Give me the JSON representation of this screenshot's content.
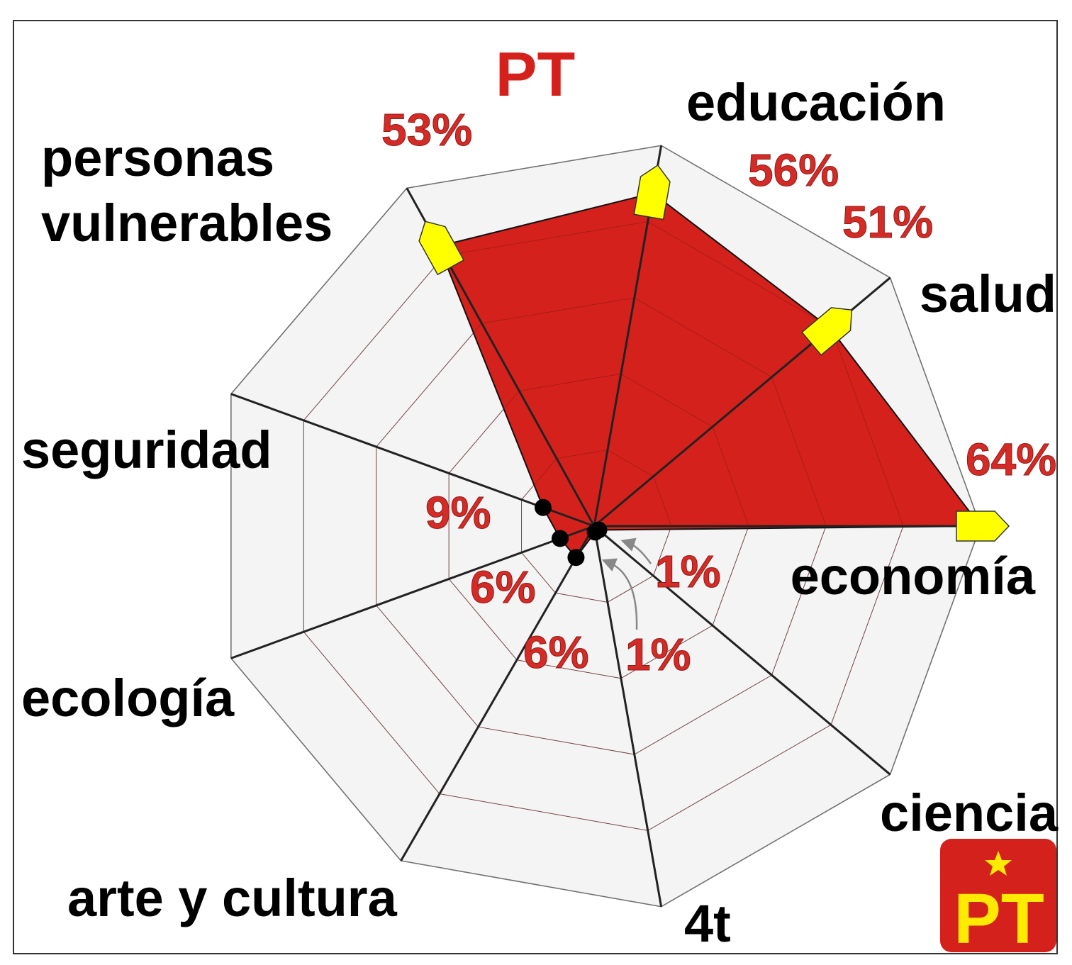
{
  "colors": {
    "fill": "#d5211c",
    "stroke": "#222222",
    "pct_text": "#d52b26",
    "marker": "#ffff00",
    "grid_face": "#f4f4f4",
    "logo_bg": "#d5211c",
    "logo_text": "#ffea00"
  },
  "chart_data": {
    "type": "radar",
    "title": "PT",
    "scale_max": 64,
    "rings": 5,
    "axes": [
      {
        "label": "economía",
        "value": 64,
        "value_label": "64%"
      },
      {
        "label": "salud",
        "value": 51,
        "value_label": "51%"
      },
      {
        "label": "educación",
        "value": 56,
        "value_label": "56%"
      },
      {
        "label": "personas vulnerables",
        "label_lines": [
          "personas",
          "vulnerables"
        ],
        "value": 53,
        "value_label": "53%"
      },
      {
        "label": "seguridad",
        "value": 9,
        "value_label": "9%"
      },
      {
        "label": "ecología",
        "value": 6,
        "value_label": "6%"
      },
      {
        "label": "arte y cultura",
        "value": 6,
        "value_label": "6%"
      },
      {
        "label": "4t",
        "value": 1,
        "value_label": "1%"
      },
      {
        "label": "ciencia",
        "value": 1,
        "value_label": "1%"
      }
    ]
  },
  "logo": {
    "text": "PT",
    "icon": "star-icon"
  }
}
